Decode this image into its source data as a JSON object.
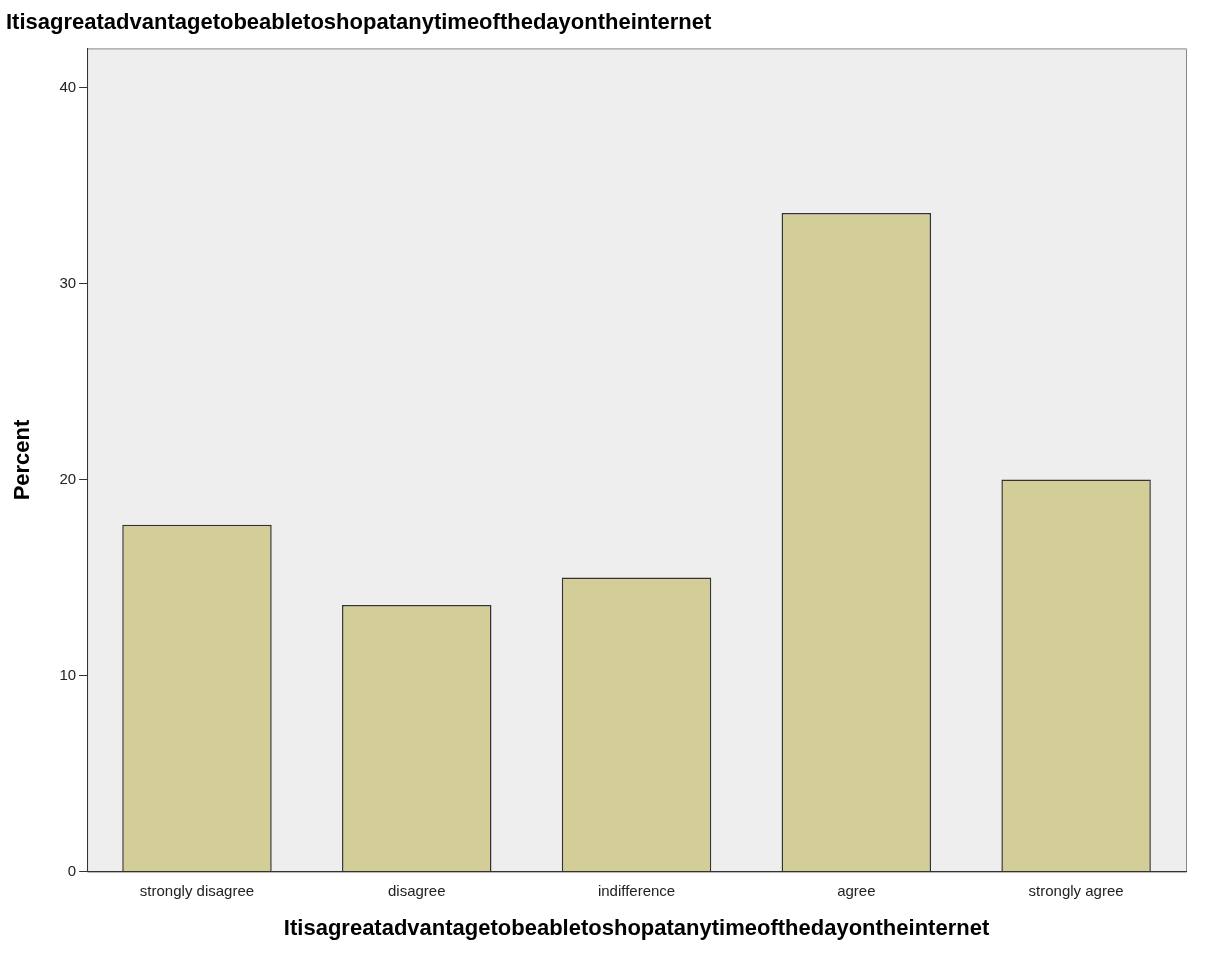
{
  "chart_data": {
    "type": "bar",
    "title": "Itisagreatadvantagetobeabletoshopatanytimeofthedayontheinternet",
    "xlabel": "Itisagreatadvantagetobeabletoshopatanytimeofthedayontheinternet",
    "ylabel": "Percent",
    "categories": [
      "strongly disagree",
      "disagree",
      "indifference",
      "agree",
      "strongly agree"
    ],
    "values": [
      17.7,
      13.6,
      15.0,
      33.6,
      20.0
    ],
    "color": "#d3ce97",
    "ylim": [
      0,
      42
    ],
    "yticks": [
      0,
      10,
      20,
      30,
      40
    ],
    "grid": false,
    "legend": false
  }
}
